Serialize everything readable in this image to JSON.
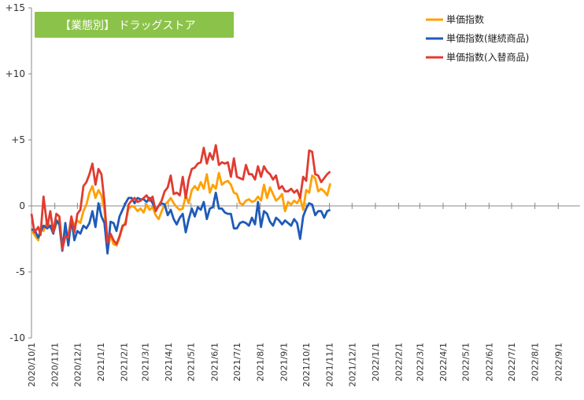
{
  "chart_data": {
    "type": "line",
    "title": "【業態別】 ドラッグストア",
    "title_bg": "#8BC34A",
    "ylim": [
      -10,
      15
    ],
    "yticks": [
      {
        "value": 15,
        "label": "+15"
      },
      {
        "value": 10,
        "label": "+10"
      },
      {
        "value": 5,
        "label": "+5"
      },
      {
        "value": 0,
        "label": "0"
      },
      {
        "value": -5,
        "label": "-5"
      },
      {
        "value": -10,
        "label": "-10"
      }
    ],
    "xticks": [
      "2020/10/1",
      "2020/11/1",
      "2020/12/1",
      "2021/1/1",
      "2021/2/1",
      "2021/3/1",
      "2021/4/1",
      "2021/5/1",
      "2021/6/1",
      "2021/7/1",
      "2021/8/1",
      "2021/9/1",
      "2021/10/1",
      "2021/11/1",
      "2021/12/1",
      "2022/1/1",
      "2022/2/1",
      "2022/3/1",
      "2022/4/1",
      "2022/5/1",
      "2022/6/1",
      "2022/7/1",
      "2022/8/1",
      "2022/9/1"
    ],
    "x_start": "2020/10/1",
    "x_end": "2022/9/30",
    "grid": false,
    "legend_position": "top-right",
    "series": [
      {
        "name": "単価指数",
        "color": "#FFA000",
        "points": [
          [
            0,
            -1.8
          ],
          [
            4,
            -2.2
          ],
          [
            9,
            -2.6
          ],
          [
            12,
            -1.7
          ],
          [
            16,
            -1.9
          ],
          [
            21,
            -1.2
          ],
          [
            25,
            -1.6
          ],
          [
            29,
            -2.0
          ],
          [
            33,
            -1.4
          ],
          [
            37,
            -1.0
          ],
          [
            41,
            -3.2
          ],
          [
            45,
            -2.1
          ],
          [
            49,
            -2.3
          ],
          [
            53,
            -0.9
          ],
          [
            57,
            -1.5
          ],
          [
            61,
            -1.1
          ],
          [
            65,
            -1.3
          ],
          [
            69,
            -0.4
          ],
          [
            73,
            0.1
          ],
          [
            77,
            1.0
          ],
          [
            81,
            1.5
          ],
          [
            85,
            0.6
          ],
          [
            89,
            1.2
          ],
          [
            93,
            0.8
          ],
          [
            97,
            -0.3
          ],
          [
            101,
            -3.4
          ],
          [
            105,
            -2.2
          ],
          [
            109,
            -2.9
          ],
          [
            113,
            -3.0
          ],
          [
            117,
            -2.4
          ],
          [
            121,
            -1.6
          ],
          [
            125,
            -1.2
          ],
          [
            129,
            -0.2
          ],
          [
            133,
            0.0
          ],
          [
            137,
            -0.1
          ],
          [
            141,
            -0.4
          ],
          [
            145,
            -0.2
          ],
          [
            149,
            -0.5
          ],
          [
            153,
            0.1
          ],
          [
            157,
            -0.3
          ],
          [
            161,
            -0.1
          ],
          [
            165,
            -0.7
          ],
          [
            169,
            -1.0
          ],
          [
            173,
            -0.4
          ],
          [
            177,
            0.1
          ],
          [
            181,
            0.3
          ],
          [
            185,
            0.6
          ],
          [
            189,
            0.2
          ],
          [
            193,
            -0.1
          ],
          [
            197,
            -0.3
          ],
          [
            201,
            -0.2
          ],
          [
            205,
            0.8
          ],
          [
            209,
            0.2
          ],
          [
            213,
            1.2
          ],
          [
            217,
            1.5
          ],
          [
            221,
            1.2
          ],
          [
            225,
            1.8
          ],
          [
            229,
            1.3
          ],
          [
            233,
            2.4
          ],
          [
            237,
            1.0
          ],
          [
            241,
            1.6
          ],
          [
            245,
            1.3
          ],
          [
            249,
            2.5
          ],
          [
            253,
            1.6
          ],
          [
            257,
            1.8
          ],
          [
            261,
            1.9
          ],
          [
            265,
            1.6
          ],
          [
            269,
            1.0
          ],
          [
            273,
            0.9
          ],
          [
            277,
            0.2
          ],
          [
            281,
            0.1
          ],
          [
            285,
            0.4
          ],
          [
            289,
            0.5
          ],
          [
            293,
            0.3
          ],
          [
            297,
            0.4
          ],
          [
            301,
            0.7
          ],
          [
            305,
            0.4
          ],
          [
            309,
            1.6
          ],
          [
            313,
            0.6
          ],
          [
            317,
            1.4
          ],
          [
            321,
            0.9
          ],
          [
            325,
            0.4
          ],
          [
            329,
            0.6
          ],
          [
            333,
            0.9
          ],
          [
            337,
            -0.4
          ],
          [
            341,
            0.3
          ],
          [
            345,
            0.1
          ],
          [
            349,
            0.4
          ],
          [
            353,
            0.2
          ],
          [
            357,
            0.6
          ],
          [
            361,
            -0.3
          ],
          [
            365,
            1.2
          ],
          [
            369,
            1.0
          ],
          [
            373,
            2.3
          ],
          [
            377,
            2.1
          ],
          [
            381,
            1.1
          ],
          [
            385,
            1.3
          ],
          [
            389,
            1.1
          ],
          [
            393,
            0.8
          ],
          [
            397,
            1.7
          ]
        ]
      },
      {
        "name": "単価指数(継続商品)",
        "color": "#1F5BB8",
        "points": [
          [
            0,
            -1.8
          ],
          [
            4,
            -1.8
          ],
          [
            9,
            -2.4
          ],
          [
            12,
            -2.0
          ],
          [
            16,
            -1.5
          ],
          [
            21,
            -1.7
          ],
          [
            25,
            -1.5
          ],
          [
            29,
            -2.1
          ],
          [
            33,
            -1.1
          ],
          [
            37,
            -1.4
          ],
          [
            41,
            -3.4
          ],
          [
            45,
            -1.3
          ],
          [
            49,
            -3.0
          ],
          [
            53,
            -1.0
          ],
          [
            57,
            -2.6
          ],
          [
            61,
            -1.9
          ],
          [
            65,
            -2.1
          ],
          [
            69,
            -1.5
          ],
          [
            73,
            -1.7
          ],
          [
            77,
            -1.3
          ],
          [
            81,
            -0.4
          ],
          [
            85,
            -1.6
          ],
          [
            89,
            0.2
          ],
          [
            93,
            -0.8
          ],
          [
            97,
            -1.3
          ],
          [
            101,
            -3.6
          ],
          [
            105,
            -1.2
          ],
          [
            109,
            -1.3
          ],
          [
            113,
            -1.9
          ],
          [
            117,
            -0.8
          ],
          [
            121,
            -0.3
          ],
          [
            125,
            0.2
          ],
          [
            129,
            0.6
          ],
          [
            133,
            0.6
          ],
          [
            137,
            0.2
          ],
          [
            141,
            0.6
          ],
          [
            145,
            0.5
          ],
          [
            149,
            0.5
          ],
          [
            153,
            0.3
          ],
          [
            157,
            0.6
          ],
          [
            161,
            0.2
          ],
          [
            165,
            -0.3
          ],
          [
            169,
            0.0
          ],
          [
            173,
            0.2
          ],
          [
            177,
            0.1
          ],
          [
            181,
            -0.7
          ],
          [
            185,
            -0.3
          ],
          [
            189,
            -1.0
          ],
          [
            193,
            -1.4
          ],
          [
            197,
            -0.9
          ],
          [
            201,
            -0.6
          ],
          [
            205,
            -2.0
          ],
          [
            209,
            -1.0
          ],
          [
            213,
            -0.2
          ],
          [
            217,
            -0.8
          ],
          [
            221,
            -0.1
          ],
          [
            225,
            -0.3
          ],
          [
            229,
            0.3
          ],
          [
            233,
            -1.0
          ],
          [
            237,
            -0.2
          ],
          [
            241,
            -0.1
          ],
          [
            245,
            1.0
          ],
          [
            249,
            -0.2
          ],
          [
            253,
            -0.2
          ],
          [
            257,
            -0.5
          ],
          [
            261,
            -0.6
          ],
          [
            265,
            -0.6
          ],
          [
            269,
            -1.7
          ],
          [
            273,
            -1.7
          ],
          [
            277,
            -1.3
          ],
          [
            281,
            -1.2
          ],
          [
            285,
            -1.3
          ],
          [
            289,
            -1.5
          ],
          [
            293,
            -0.9
          ],
          [
            297,
            -1.4
          ],
          [
            301,
            0.3
          ],
          [
            305,
            -1.6
          ],
          [
            309,
            -0.4
          ],
          [
            313,
            -0.6
          ],
          [
            317,
            -1.2
          ],
          [
            321,
            -1.5
          ],
          [
            325,
            -0.9
          ],
          [
            329,
            -1.1
          ],
          [
            333,
            -1.4
          ],
          [
            337,
            -1.1
          ],
          [
            341,
            -1.3
          ],
          [
            345,
            -1.5
          ],
          [
            349,
            -1.0
          ],
          [
            353,
            -1.3
          ],
          [
            357,
            -2.5
          ],
          [
            361,
            -0.8
          ],
          [
            365,
            -0.2
          ],
          [
            369,
            0.2
          ],
          [
            373,
            0.1
          ],
          [
            377,
            -0.7
          ],
          [
            381,
            -0.4
          ],
          [
            385,
            -0.4
          ],
          [
            389,
            -0.9
          ],
          [
            393,
            -0.4
          ],
          [
            397,
            -0.3
          ]
        ]
      },
      {
        "name": "単価指数(入替商品)",
        "color": "#E03C31",
        "points": [
          [
            0,
            -0.6
          ],
          [
            4,
            -2.0
          ],
          [
            9,
            -1.6
          ],
          [
            12,
            -2.2
          ],
          [
            16,
            0.7
          ],
          [
            21,
            -1.6
          ],
          [
            25,
            -0.4
          ],
          [
            29,
            -2.0
          ],
          [
            33,
            -0.6
          ],
          [
            37,
            -0.8
          ],
          [
            41,
            -3.3
          ],
          [
            45,
            -2.3
          ],
          [
            49,
            -2.4
          ],
          [
            53,
            -0.8
          ],
          [
            57,
            -2.0
          ],
          [
            61,
            -0.6
          ],
          [
            65,
            -0.3
          ],
          [
            69,
            1.5
          ],
          [
            73,
            1.8
          ],
          [
            77,
            2.4
          ],
          [
            81,
            3.2
          ],
          [
            85,
            1.6
          ],
          [
            89,
            2.8
          ],
          [
            93,
            2.4
          ],
          [
            97,
            0.3
          ],
          [
            101,
            -2.8
          ],
          [
            105,
            -2.1
          ],
          [
            109,
            -2.6
          ],
          [
            113,
            -2.9
          ],
          [
            117,
            -2.3
          ],
          [
            121,
            -1.5
          ],
          [
            125,
            -1.4
          ],
          [
            129,
            0.1
          ],
          [
            133,
            0.4
          ],
          [
            137,
            0.6
          ],
          [
            141,
            0.3
          ],
          [
            145,
            0.4
          ],
          [
            149,
            0.6
          ],
          [
            153,
            0.8
          ],
          [
            157,
            0.4
          ],
          [
            161,
            0.7
          ],
          [
            165,
            -0.4
          ],
          [
            169,
            0.0
          ],
          [
            173,
            0.4
          ],
          [
            177,
            1.1
          ],
          [
            181,
            1.4
          ],
          [
            185,
            2.3
          ],
          [
            189,
            0.9
          ],
          [
            193,
            1.0
          ],
          [
            197,
            0.8
          ],
          [
            201,
            2.2
          ],
          [
            205,
            0.6
          ],
          [
            209,
            2.0
          ],
          [
            213,
            2.8
          ],
          [
            217,
            2.9
          ],
          [
            221,
            3.2
          ],
          [
            225,
            3.3
          ],
          [
            229,
            4.4
          ],
          [
            233,
            3.2
          ],
          [
            237,
            4.0
          ],
          [
            241,
            3.5
          ],
          [
            245,
            4.6
          ],
          [
            249,
            3.1
          ],
          [
            253,
            3.3
          ],
          [
            257,
            3.2
          ],
          [
            261,
            3.3
          ],
          [
            265,
            2.2
          ],
          [
            269,
            3.6
          ],
          [
            273,
            2.2
          ],
          [
            277,
            2.1
          ],
          [
            281,
            2.0
          ],
          [
            285,
            3.1
          ],
          [
            289,
            2.4
          ],
          [
            293,
            2.4
          ],
          [
            297,
            2.0
          ],
          [
            301,
            3.0
          ],
          [
            305,
            2.2
          ],
          [
            309,
            3.0
          ],
          [
            313,
            2.6
          ],
          [
            317,
            2.4
          ],
          [
            321,
            2.0
          ],
          [
            325,
            2.3
          ],
          [
            329,
            1.3
          ],
          [
            333,
            1.5
          ],
          [
            337,
            1.1
          ],
          [
            341,
            1.1
          ],
          [
            345,
            1.3
          ],
          [
            349,
            1.0
          ],
          [
            353,
            1.2
          ],
          [
            357,
            0.6
          ],
          [
            361,
            2.2
          ],
          [
            365,
            1.9
          ],
          [
            369,
            4.2
          ],
          [
            373,
            4.1
          ],
          [
            377,
            2.4
          ],
          [
            381,
            2.3
          ],
          [
            385,
            1.8
          ],
          [
            389,
            2.1
          ],
          [
            393,
            2.4
          ],
          [
            397,
            2.6
          ]
        ]
      }
    ]
  }
}
